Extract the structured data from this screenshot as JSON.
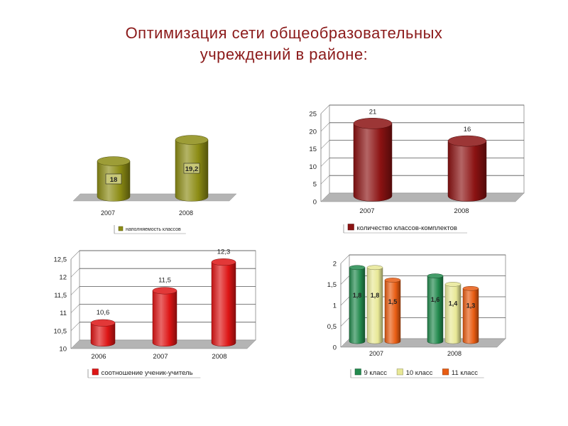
{
  "page": {
    "title_line1": "Оптимизация сети общеобразовательных",
    "title_line2": "учреждений в районе:"
  },
  "chart_data": [
    {
      "type": "bar",
      "categories": [
        "2007",
        "2008"
      ],
      "series": [
        {
          "name": "наполняемость классов",
          "values": [
            18,
            19.2
          ]
        }
      ],
      "data_labels": [
        "18",
        "19,2"
      ],
      "colors": {
        "series": [
          "#8c8c14"
        ]
      },
      "grid": false,
      "legend": "bottom"
    },
    {
      "type": "bar",
      "categories": [
        "2007",
        "2008"
      ],
      "series": [
        {
          "name": "количество классов-комплектов",
          "values": [
            21,
            16
          ]
        }
      ],
      "data_labels": [
        "21",
        "16"
      ],
      "ylim": [
        0,
        25
      ],
      "yticks": [
        "0",
        "5",
        "10",
        "15",
        "20",
        "25"
      ],
      "colors": {
        "series": [
          "#8b1212"
        ]
      },
      "grid": true,
      "legend": "bottom"
    },
    {
      "type": "bar",
      "categories": [
        "2006",
        "2007",
        "2008"
      ],
      "series": [
        {
          "name": "соотношение ученик-учитель",
          "values": [
            10.6,
            11.5,
            12.3
          ]
        }
      ],
      "data_labels": [
        "10,6",
        "11,5",
        "12,3"
      ],
      "ylim": [
        10,
        12.5
      ],
      "yticks": [
        "10",
        "10,5",
        "11",
        "11,5",
        "12",
        "12,5"
      ],
      "colors": {
        "series": [
          "#dd1515"
        ]
      },
      "grid": true,
      "legend": "bottom"
    },
    {
      "type": "bar",
      "categories": [
        "2007",
        "2008"
      ],
      "series": [
        {
          "name": "9 класс",
          "values": [
            1.8,
            1.6
          ]
        },
        {
          "name": "10 класс",
          "values": [
            1.8,
            1.4
          ]
        },
        {
          "name": "11 класс",
          "values": [
            1.5,
            1.3
          ]
        }
      ],
      "data_labels": [
        [
          "1,8",
          "1,6"
        ],
        [
          "1,8",
          "1,4"
        ],
        [
          "1,5",
          "1,3"
        ]
      ],
      "ylim": [
        0,
        2
      ],
      "yticks": [
        "0",
        "0,5",
        "1",
        "1,5",
        "2"
      ],
      "colors": {
        "series": [
          "#238a4e",
          "#e8e896",
          "#e85c12"
        ]
      },
      "grid": true,
      "legend": "bottom"
    }
  ]
}
